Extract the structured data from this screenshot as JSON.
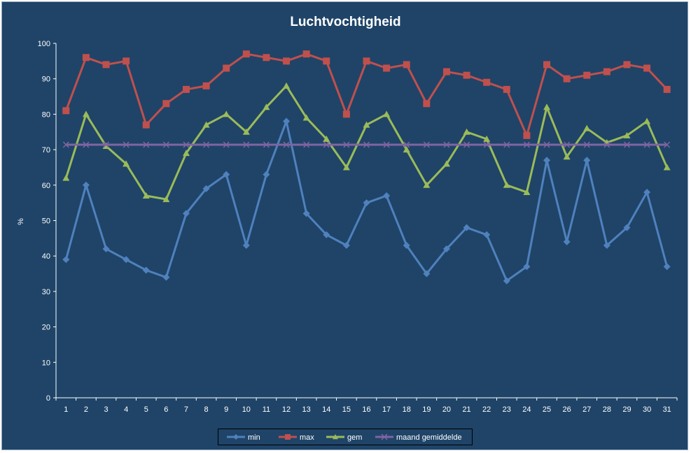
{
  "chart_data": {
    "type": "line",
    "title": "Luchtvochtigheid",
    "xlabel": "",
    "ylabel": "%",
    "ylim": [
      0,
      100
    ],
    "yticks": [
      0,
      10,
      20,
      30,
      40,
      50,
      60,
      70,
      80,
      90,
      100
    ],
    "x": [
      1,
      2,
      3,
      4,
      5,
      6,
      7,
      8,
      9,
      10,
      11,
      12,
      13,
      14,
      15,
      16,
      17,
      18,
      19,
      20,
      21,
      22,
      23,
      24,
      25,
      26,
      27,
      28,
      29,
      30,
      31
    ],
    "grid": false,
    "legend_position": "bottom",
    "series": [
      {
        "name": "min",
        "color": "#4f81bd",
        "marker": "diamond",
        "values": [
          39,
          60,
          42,
          39,
          36,
          34,
          52,
          59,
          63,
          43,
          63,
          78,
          52,
          46,
          43,
          55,
          57,
          43,
          35,
          42,
          48,
          46,
          33,
          37,
          67,
          44,
          67,
          43,
          48,
          58,
          37
        ]
      },
      {
        "name": "max",
        "color": "#c0504d",
        "marker": "square",
        "values": [
          81,
          96,
          94,
          95,
          77,
          83,
          87,
          88,
          93,
          97,
          96,
          95,
          97,
          95,
          80,
          95,
          93,
          94,
          83,
          92,
          91,
          89,
          87,
          74,
          94,
          90,
          91,
          92,
          94,
          93,
          87
        ]
      },
      {
        "name": "gem",
        "color": "#9bbb59",
        "marker": "triangle",
        "values": [
          62,
          80,
          71,
          66,
          57,
          56,
          69,
          77,
          80,
          75,
          82,
          88,
          79,
          73,
          65,
          77,
          80,
          70,
          60,
          66,
          75,
          73,
          60,
          58,
          82,
          68,
          76,
          72,
          74,
          78,
          65
        ]
      },
      {
        "name": "maand gemiddelde",
        "color": "#8064a2",
        "marker": "x",
        "values": [
          71.4,
          71.4,
          71.4,
          71.4,
          71.4,
          71.4,
          71.4,
          71.4,
          71.4,
          71.4,
          71.4,
          71.4,
          71.4,
          71.4,
          71.4,
          71.4,
          71.4,
          71.4,
          71.4,
          71.4,
          71.4,
          71.4,
          71.4,
          71.4,
          71.4,
          71.4,
          71.4,
          71.4,
          71.4,
          71.4,
          71.4
        ]
      }
    ]
  }
}
